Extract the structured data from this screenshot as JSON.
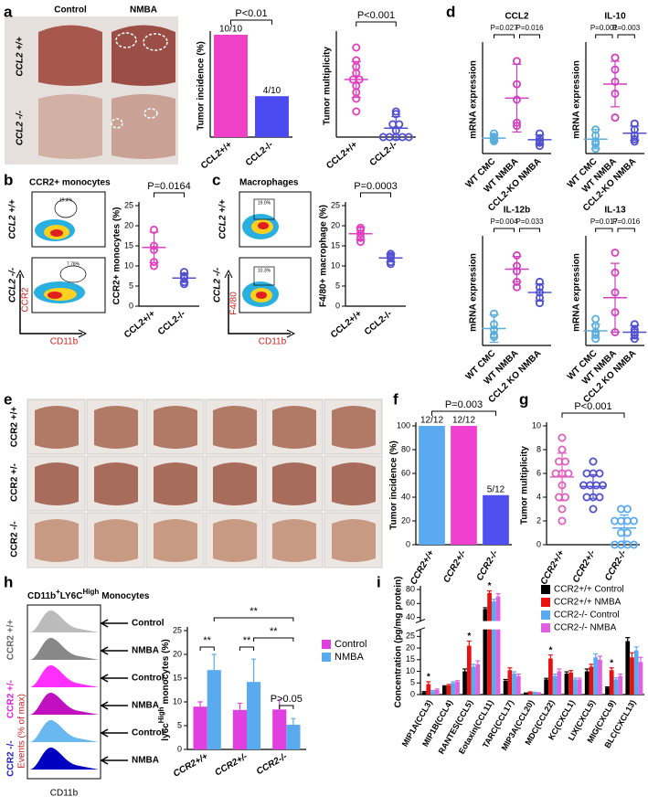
{
  "letters": [
    "a",
    "d",
    "b",
    "c",
    "e",
    "f",
    "g",
    "h",
    "i"
  ],
  "photo_a": {
    "columns": [
      "Control",
      "NMBA"
    ],
    "rows": [
      "CCL2 +/+",
      "CCL2 -/-"
    ]
  },
  "flow_b": {
    "title": "CCR2+ monocytes",
    "rows": [
      "CCL2 +/+",
      "CCL2 -/-"
    ],
    "gates": [
      "19.4%",
      "7.78%"
    ],
    "y_axis": "CCR2",
    "x_axis": "CD11b"
  },
  "flow_c": {
    "title": "Macrophages",
    "rows": [
      "CCL2 +/+",
      "CCL2 -/-"
    ],
    "gates": [
      "19.0%",
      "10.3%"
    ],
    "y_axis": "F4/80",
    "x_axis": "CD11b"
  },
  "photo_e": {
    "rows": [
      "CCR2 +/+",
      "CCR2 +/-",
      "CCR2 -/-"
    ]
  },
  "histogram_h": {
    "title": [
      "CD11b",
      "+",
      "LY6C",
      "High",
      "Monocytes"
    ],
    "groups": [
      "CCR2 +/+",
      "CCR2 +/-",
      "CCR2 -/-"
    ],
    "y_axis": "Events (% of max)",
    "x_axis": "CD11b",
    "conditions": [
      "Control",
      "NMBA",
      "Control",
      "NMBA",
      "Control",
      "NMBA"
    ]
  },
  "chart_data": [
    {
      "type": "bar",
      "ylabel": "Tumor incidence (%)",
      "categories": [
        "CCL2+/+",
        "CCL2-/-"
      ],
      "values": [
        100,
        40
      ],
      "value_labels": [
        "10/10",
        "4/10"
      ],
      "colors": [
        "#f040c8",
        "#4a4af0"
      ],
      "annotation": "P<0.01",
      "ylim": [
        0,
        100
      ]
    },
    {
      "type": "dot",
      "ylabel": "Tumor multiplicity",
      "categories": [
        "CCL2+/+",
        "CCL2-/-"
      ],
      "points": [
        [
          7,
          6,
          5.5,
          5,
          4.5,
          4.5,
          4,
          3.5,
          3,
          2
        ],
        [
          2,
          1.8,
          1,
          1,
          0.5,
          0,
          0,
          0,
          0,
          0
        ]
      ],
      "means": [
        4.5,
        0.7
      ],
      "sds": [
        1.4,
        0.9
      ],
      "colors": [
        "#e040c0",
        "#5050d0"
      ],
      "annotation": "P<0.001",
      "ylim": [
        0,
        8
      ]
    },
    {
      "type": "dot",
      "ylabel": "CCR2+ monocytes (%)",
      "categories": [
        "CCL2+/+",
        "CCL2-/-"
      ],
      "points": [
        [
          19,
          15,
          14,
          11,
          10
        ],
        [
          8.5,
          7.5,
          7,
          6,
          5.5
        ]
      ],
      "means": [
        14.6,
        7
      ],
      "sds": [
        3.8,
        1.1
      ],
      "colors": [
        "#e040c0",
        "#5050d0"
      ],
      "annotation": "P=0.0164",
      "ylim": [
        0,
        25
      ],
      "yticks": [
        0,
        5,
        10,
        15,
        20,
        25
      ]
    },
    {
      "type": "dot",
      "ylabel": "F4/80+ macrophage (%)",
      "categories": [
        "CCL2+/+",
        "CCL2-/-"
      ],
      "points": [
        [
          19.5,
          19,
          18,
          17,
          16
        ],
        [
          13,
          12.5,
          12,
          11,
          10.5
        ]
      ],
      "means": [
        18,
        12
      ],
      "sds": [
        1.5,
        1
      ],
      "colors": [
        "#e040c0",
        "#5050d0"
      ],
      "annotation": "P=0.0003",
      "ylim": [
        0,
        25
      ],
      "yticks": [
        0,
        5,
        10,
        15,
        20,
        25
      ]
    },
    {
      "type": "dot",
      "title": "CCL2",
      "ylabel": "mRNA  expression",
      "categories": [
        "WT CMC",
        "WT NMBA",
        "CCL2-KO NMBA"
      ],
      "points": [
        [
          1.3,
          1.1,
          1,
          0.9,
          0.8
        ],
        [
          6,
          4.5,
          3.5,
          2,
          1.8
        ],
        [
          1.3,
          1,
          0.8,
          0.7,
          0.5
        ]
      ],
      "means": [
        1,
        3.6,
        0.9
      ],
      "sds": [
        0.2,
        2.2,
        0.3
      ],
      "colors": [
        "#5aaedc",
        "#d040c0",
        "#5050d0"
      ],
      "annotations": [
        "P=0.027",
        "P=0.016"
      ],
      "ylim": [
        0,
        7
      ]
    },
    {
      "type": "dot",
      "title": "IL-10",
      "ylabel": "mRNA  expression",
      "categories": [
        "WT CMC",
        "WT NMBA",
        "CCL2-KO NMBA"
      ],
      "points": [
        [
          2,
          1.5,
          1,
          0.8,
          0.4
        ],
        [
          8,
          7,
          6,
          5,
          3
        ],
        [
          2.5,
          2,
          1.5,
          1.2,
          1
        ]
      ],
      "means": [
        1.2,
        5.8,
        1.7
      ],
      "sds": [
        0.8,
        1.9,
        0.6
      ],
      "colors": [
        "#5aaedc",
        "#d040c0",
        "#5050d0"
      ],
      "annotations": [
        "P=0.001",
        "P=0.003"
      ],
      "ylim": [
        0,
        9
      ]
    },
    {
      "type": "dot",
      "title": "IL-12b",
      "ylabel": "mRNA expression",
      "categories": [
        "WT CMC",
        "WT NMBA",
        "CCL2 KO NMBA"
      ],
      "points": [
        [
          3,
          2,
          1.5,
          1,
          0.8
        ],
        [
          8.5,
          7.5,
          7,
          6,
          5.5
        ],
        [
          6,
          5.5,
          5,
          4.5,
          4
        ]
      ],
      "means": [
        1.6,
        7.2,
        5
      ],
      "sds": [
        1.3,
        1.2,
        0.8
      ],
      "colors": [
        "#5aaedc",
        "#d040c0",
        "#5050d0"
      ],
      "annotations": [
        "P=0.004",
        "P=0.033"
      ],
      "ylim": [
        0,
        10
      ]
    },
    {
      "type": "dot",
      "title": "IL-13",
      "ylabel": "mRNA expression",
      "categories": [
        "WT CMC",
        "WT NMBA",
        "CCL2 KO NMBA"
      ],
      "points": [
        [
          2,
          1.5,
          1,
          0.8,
          0.5
        ],
        [
          7,
          5.5,
          4,
          2.5,
          1
        ],
        [
          1.6,
          1.2,
          1,
          0.8,
          0.5
        ]
      ],
      "means": [
        1.1,
        3.6,
        1
      ],
      "sds": [
        0.5,
        2.6,
        0.5
      ],
      "colors": [
        "#5aaedc",
        "#d040c0",
        "#5050d0"
      ],
      "annotations": [
        "P=0.017",
        "P=0.016"
      ],
      "ylim": [
        0,
        8
      ]
    },
    {
      "type": "bar",
      "ylabel": "Tumor incidence (%)",
      "categories": [
        "CCR2+/+",
        "CCR2+/-",
        "CCR2-/-"
      ],
      "values": [
        100,
        100,
        41.7
      ],
      "value_labels": [
        "12/12",
        "12/12",
        "5/12"
      ],
      "colors": [
        "#5aaaf0",
        "#f040d0",
        "#5050f0"
      ],
      "annotation": "P=0.003",
      "ylim": [
        0,
        100
      ],
      "yticks": [
        0,
        20,
        40,
        60,
        80,
        100
      ]
    },
    {
      "type": "dot",
      "ylabel": "Tumor multiplicity",
      "categories": [
        "CCR2+/+",
        "CCR2+/-",
        "CCR2-/-"
      ],
      "points": [
        [
          9,
          8,
          7,
          7,
          6,
          6,
          6,
          5,
          4,
          4,
          3,
          2
        ],
        [
          7,
          6,
          6,
          6,
          5,
          5,
          5,
          5,
          4,
          4,
          4,
          3
        ],
        [
          3,
          3,
          2,
          2,
          2,
          2,
          1,
          1,
          0,
          0,
          0,
          0
        ]
      ],
      "means": [
        5.7,
        4.9,
        1.4
      ],
      "sds": [
        2,
        1,
        1.1
      ],
      "colors": [
        "#e060c0",
        "#5050d0",
        "#5aaaf0"
      ],
      "annotation": "P<0.001",
      "ylim": [
        0,
        10
      ],
      "yticks": [
        0,
        2,
        4,
        6,
        8,
        10
      ]
    },
    {
      "type": "grouped_bar",
      "ylabel": [
        "ly6c",
        "High",
        "monocytes (%)"
      ],
      "categories": [
        "CCR2+/+",
        "CCR2+/-",
        "CCR2-/-"
      ],
      "series": [
        {
          "name": "Control",
          "color": "#e040e0",
          "values": [
            9,
            8.3,
            8.4
          ],
          "errors": [
            1,
            1.4,
            2
          ]
        },
        {
          "name": "NMBA",
          "color": "#5aaaf0",
          "values": [
            16.7,
            14.2,
            5.2
          ],
          "errors": [
            3.3,
            4.8,
            1.3
          ]
        }
      ],
      "annotations": [
        "**",
        "**",
        "**",
        "**",
        "P>0.05"
      ],
      "ylim": [
        0,
        25
      ],
      "yticks": [
        0,
        5,
        10,
        15,
        20,
        25
      ]
    },
    {
      "type": "grouped_bar",
      "ylabel": "Concentration (pg/mg protein)",
      "categories": [
        "MIP1A(CCL3)",
        "MIP1B(CCL4)",
        "RANTES(CCL5)",
        "Eotaxin(CCL11)",
        "TARC(CCL17)",
        "MIP3A(CCL20)",
        "MDC(CCL22)",
        "KC(CXCL1)",
        "LIX(CXCL5)",
        "MIG(CXCL9)",
        "BLC(CXCL13)"
      ],
      "series": [
        {
          "name": "CCR2+/+ Control",
          "color": "#000000",
          "values": [
            1,
            3.5,
            10,
            52,
            6,
            0.5,
            6.5,
            9,
            10,
            3,
            23
          ],
          "errors": [
            0.3,
            0.3,
            1,
            2,
            0.5,
            0.2,
            0.5,
            0.8,
            1,
            0.3,
            1.5
          ]
        },
        {
          "name": "CCR2+/+ NMBA",
          "color": "#e81010",
          "values": [
            4.5,
            4,
            21,
            75,
            10.5,
            1,
            15.5,
            9.5,
            12,
            10.5,
            16
          ],
          "errors": [
            1,
            0.4,
            2,
            3,
            1,
            0.2,
            1.5,
            0.8,
            1,
            1,
            2
          ]
        },
        {
          "name": "CCR2-/- Control",
          "color": "#5aaaf0",
          "values": [
            1.5,
            5,
            12,
            63,
            9,
            0.8,
            8,
            6.5,
            16,
            6.5,
            19
          ],
          "errors": [
            0.3,
            0.5,
            1,
            3,
            0.8,
            0.2,
            0.8,
            0.6,
            1.5,
            0.7,
            1.5
          ]
        },
        {
          "name": "CCR2-/-  NMBA",
          "color": "#e060e0",
          "values": [
            2,
            5.5,
            13,
            70,
            8,
            0.6,
            10,
            6.5,
            15,
            8,
            14
          ],
          "errors": [
            0.4,
            0.5,
            1.5,
            4,
            0.8,
            0.2,
            1,
            0.6,
            1.5,
            0.8,
            2
          ]
        }
      ],
      "asterisks": [
        "*",
        null,
        "*",
        "*",
        null,
        null,
        "*",
        null,
        null,
        "*",
        null
      ],
      "ylim": [
        0,
        80
      ],
      "ybreak": [
        28,
        35
      ],
      "yticks": [
        0,
        5,
        10,
        15,
        20,
        25,
        40,
        60,
        80
      ]
    }
  ]
}
